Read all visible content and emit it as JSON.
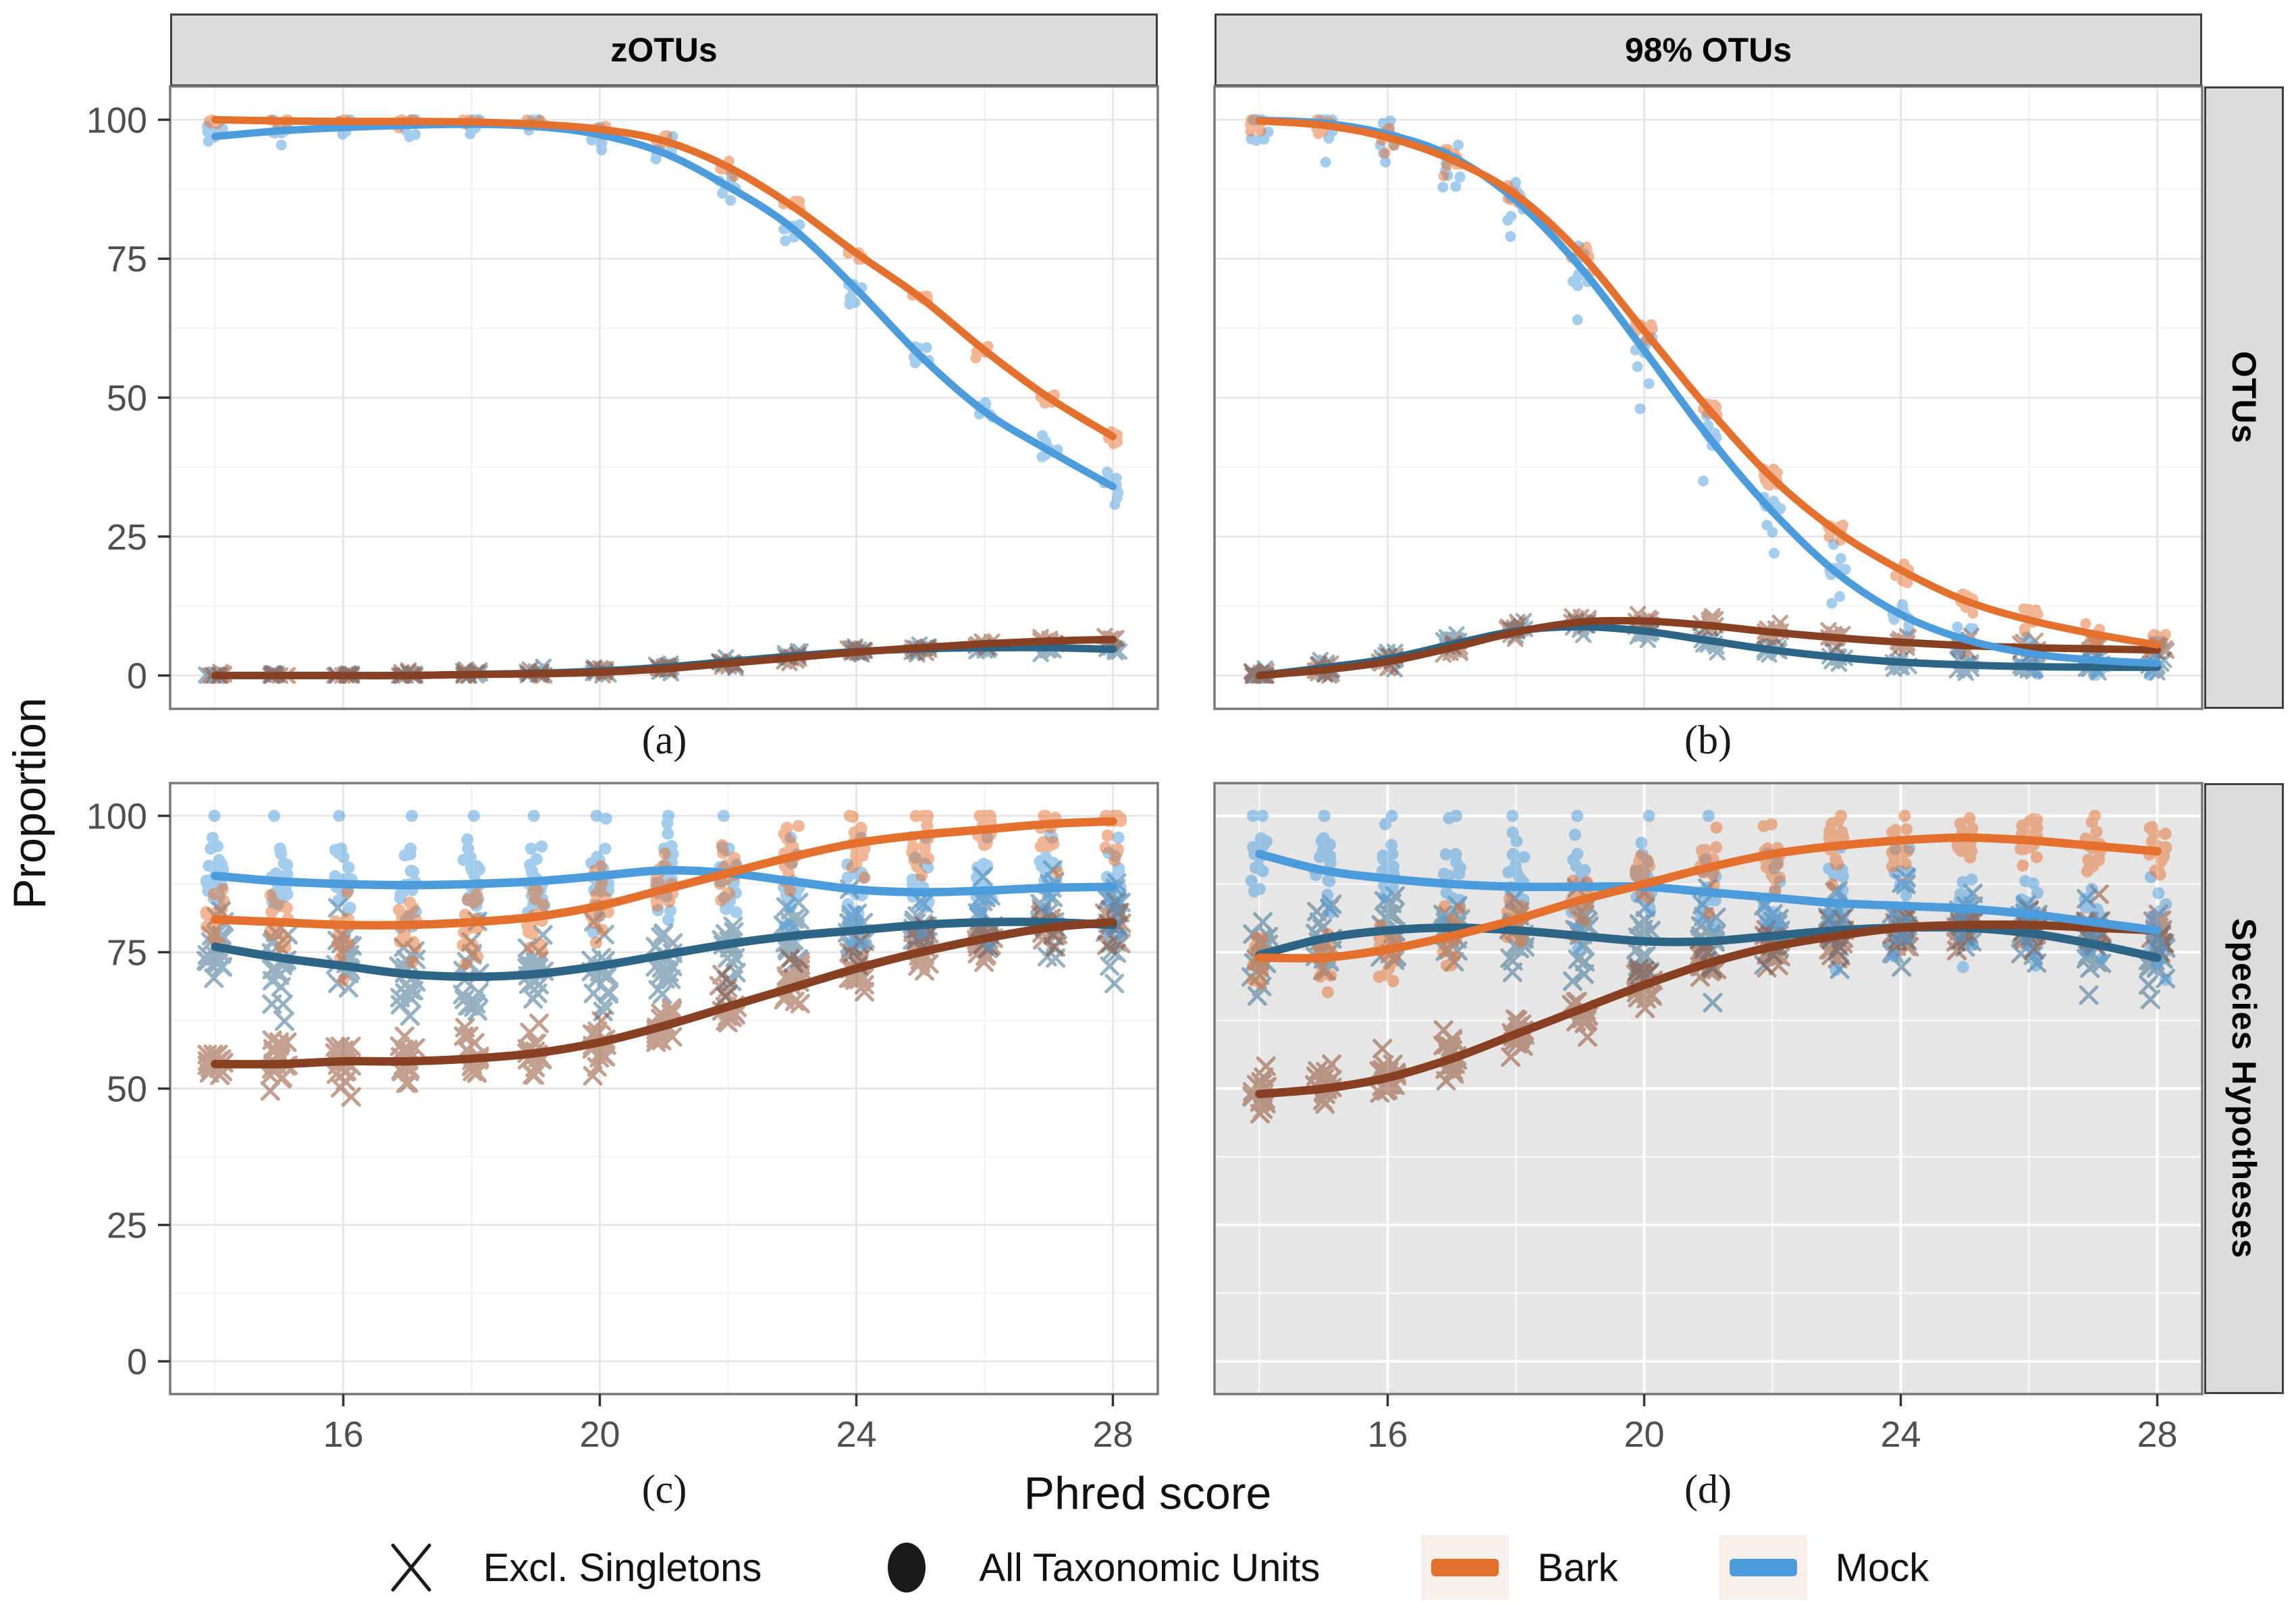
{
  "figure": {
    "y_axis_title": "Proportion",
    "x_axis_title": "Phred score",
    "col_labels": [
      "zOTUs",
      "98% OTUs"
    ],
    "row_labels": [
      "OTUs",
      "Species Hypotheses"
    ],
    "captions": [
      "(a)",
      "(b)",
      "(c)",
      "(d)"
    ],
    "colors": {
      "bark": "#E4702E",
      "mock": "#4C9CDC",
      "bark_dark": "#874021",
      "mock_dark": "#2E6486",
      "panel_white": "#FFFFFF",
      "panel_grey": "#E6E6E6",
      "strip_bg": "#DCDCDC",
      "grid_major_on_white": "#E4E4E4",
      "grid_minor_on_white": "#F2F2F2",
      "grid_on_grey": "#FFFFFF",
      "panel_border": "#777777",
      "axis_text": "#4F4F4F",
      "tick_mark": "#333333",
      "legend_symbol": "#1A1A1A"
    },
    "legend": [
      {
        "symbol": "cross",
        "label": "Excl. Singletons"
      },
      {
        "symbol": "dot",
        "label": "All Taxonomic Units"
      },
      {
        "symbol": "line",
        "color_key": "bark",
        "label": "Bark"
      },
      {
        "symbol": "line",
        "color_key": "mock",
        "label": "Mock"
      }
    ]
  },
  "chart_data": {
    "type": "scatter",
    "title": "",
    "xlabel": "Phred score",
    "ylabel": "Proportion",
    "x": [
      14,
      15,
      16,
      17,
      18,
      19,
      20,
      21,
      22,
      23,
      24,
      25,
      26,
      27,
      28
    ],
    "x_ticks": [
      16,
      20,
      24,
      28
    ],
    "y_ticks": [
      0,
      25,
      50,
      75,
      100
    ],
    "x_minor": [
      14,
      18,
      22,
      26
    ],
    "y_minor": [
      12.5,
      37.5,
      62.5,
      87.5
    ],
    "ylim": [
      0,
      100
    ],
    "grid": true,
    "legend_position": "bottom",
    "panels": [
      {
        "id": "a",
        "caption": "(a)",
        "col_label": "zOTUs",
        "row_label": "OTUs",
        "bg": "panel_white",
        "series": [
          {
            "name": "Mock - Excl. Singletons",
            "color": "mock_dark",
            "marker": "cross",
            "values": [
              0,
              0,
              0,
              0,
              0.2,
              0.4,
              0.8,
              1.5,
              2.5,
              3.5,
              4.3,
              4.8,
              5,
              5,
              4.7
            ],
            "scatter": {
              "n": 8,
              "sd": 0.4
            }
          },
          {
            "name": "Bark - Excl. Singletons",
            "color": "bark_dark",
            "marker": "cross",
            "values": [
              0,
              0,
              0,
              0,
              0.2,
              0.3,
              0.6,
              1.2,
              2.2,
              3.2,
              4.2,
              5,
              5.7,
              6.2,
              6.5
            ],
            "scatter": {
              "n": 8,
              "sd": 0.4
            }
          },
          {
            "name": "Mock - All Taxonomic Units",
            "color": "mock",
            "marker": "dot",
            "values": [
              97,
              98,
              98.6,
              99,
              99.2,
              98.8,
              97.3,
              94,
              88,
              80.5,
              69.5,
              57.5,
              47.5,
              40.5,
              34
            ],
            "scatter": {
              "n": 8,
              "sd": 1.3
            }
          },
          {
            "name": "Bark - All Taxonomic Units",
            "color": "bark",
            "marker": "dot",
            "values": [
              100,
              99.8,
              99.7,
              99.7,
              99.6,
              99.2,
              98.3,
              96.2,
              91.5,
              84.5,
              76,
              68,
              58.5,
              50,
              43
            ],
            "scatter": {
              "n": 8,
              "sd": 0.6
            }
          }
        ]
      },
      {
        "id": "b",
        "caption": "(b)",
        "col_label": "98% OTUs",
        "row_label": "OTUs",
        "bg": "panel_white",
        "series": [
          {
            "name": "Mock - Excl. Singletons",
            "color": "mock_dark",
            "marker": "cross",
            "values": [
              0,
              1.4,
              3,
              5.6,
              8,
              8.8,
              8,
              6.3,
              4.6,
              3.3,
              2.4,
              1.9,
              1.6,
              1.5,
              1.5
            ],
            "scatter": {
              "n": 10,
              "sd": 0.8
            }
          },
          {
            "name": "Bark - Excl. Singletons",
            "color": "bark_dark",
            "marker": "cross",
            "values": [
              0,
              1,
              2.5,
              5,
              7.8,
              9.6,
              9.8,
              9,
              7.8,
              6.8,
              6,
              5.4,
              5,
              4.8,
              4.6
            ],
            "scatter": {
              "n": 10,
              "sd": 0.8
            }
          },
          {
            "name": "Mock - All Taxonomic Units",
            "color": "mock",
            "marker": "dot",
            "values": [
              99.9,
              99.4,
              97.4,
              93.4,
              85.5,
              73.5,
              58.5,
              43,
              29.5,
              18.5,
              11,
              6.5,
              4,
              2.8,
              2.2
            ],
            "scatter": {
              "n": 10,
              "sd": 2.2,
              "extras_map": {
                "17": [
                  88
                ],
                "18": [
                  79
                ],
                "19": [
                  64
                ],
                "20": [
                  48
                ],
                "21": [
                  35
                ],
                "22": [
                  22
                ],
                "23": [
                  13
                ]
              }
            }
          },
          {
            "name": "Bark - All Taxonomic Units",
            "color": "bark",
            "marker": "dot",
            "values": [
              99.8,
              99,
              96.8,
              92.8,
              86.5,
              76,
              62,
              48,
              35.5,
              26,
              19,
              13.5,
              10,
              7.5,
              5.5
            ],
            "scatter": {
              "n": 10,
              "sd": 1,
              "extras_map": {
                "15": [
                  97.5
                ],
                "16": [
                  94
                ]
              }
            }
          }
        ]
      },
      {
        "id": "c",
        "caption": "(c)",
        "col_label": "zOTUs",
        "row_label": "Species Hypotheses",
        "bg": "panel_white",
        "series": [
          {
            "name": "Mock - Excl. Singletons",
            "color": "mock_dark",
            "marker": "cross",
            "values": [
              76,
              74,
              72.5,
              71,
              70.5,
              71,
              72.5,
              74.5,
              76.5,
              78,
              79,
              80,
              80.5,
              80.5,
              80
            ],
            "scatter": {
              "n": 18,
              "sd": 3.8
            }
          },
          {
            "name": "Bark - Excl. Singletons",
            "color": "bark_dark",
            "marker": "cross",
            "values": [
              54.5,
              54.5,
              55,
              55,
              55.5,
              56.5,
              58.5,
              61.5,
              65,
              68.5,
              72,
              75,
              77.5,
              79.5,
              80.5
            ],
            "scatter": {
              "n": 18,
              "sd": 2.2
            }
          },
          {
            "name": "Mock - All Taxonomic Units",
            "color": "mock",
            "marker": "dot",
            "values": [
              89,
              88,
              87.5,
              87.3,
              87.5,
              88,
              89,
              90,
              89.5,
              88,
              86.5,
              86,
              86.3,
              86.8,
              87
            ],
            "scatter": {
              "n": 18,
              "sd": 4,
              "extras_map": {
                "14": [
                  100,
                  94
                ],
                "15": [
                  100,
                  94
                ],
                "16": [
                  100,
                  94
                ],
                "17": [
                  100,
                  94
                ],
                "18": [
                  100,
                  94
                ],
                "19": [
                  100,
                  94
                ],
                "20": [
                  100,
                  94
                ],
                "21": [
                  100,
                  94
                ],
                "22": [
                  100,
                  94
                ],
                "23": [
                  96
                ],
                "24": [
                  96
                ],
                "25": [
                  96
                ],
                "26": [
                  96
                ],
                "27": [
                  96
                ],
                "28": [
                  96
                ]
              }
            }
          },
          {
            "name": "Bark - All Taxonomic Units",
            "color": "bark",
            "marker": "dot",
            "values": [
              81,
              80.5,
              80,
              80,
              80.5,
              81.5,
              83.5,
              86.5,
              89.5,
              92.5,
              95,
              96.5,
              97.5,
              98.5,
              99
            ],
            "scatter": {
              "n": 18,
              "sd": 3.2
            }
          }
        ]
      },
      {
        "id": "d",
        "caption": "(d)",
        "col_label": "98% OTUs",
        "row_label": "Species Hypotheses",
        "bg": "panel_grey",
        "series": [
          {
            "name": "Mock - Excl. Singletons",
            "color": "mock_dark",
            "marker": "cross",
            "values": [
              74.5,
              77.5,
              79,
              79.5,
              79,
              78,
              77,
              77,
              78,
              79,
              79.5,
              79.5,
              78.5,
              76.5,
              74
            ],
            "scatter": {
              "n": 18,
              "sd": 4
            }
          },
          {
            "name": "Bark - Excl. Singletons",
            "color": "bark_dark",
            "marker": "cross",
            "values": [
              49,
              50,
              52,
              55.5,
              60,
              64.5,
              69,
              73,
              76,
              78,
              79.5,
              80,
              80,
              79.5,
              79
            ],
            "scatter": {
              "n": 18,
              "sd": 2
            }
          },
          {
            "name": "Mock - All Taxonomic Units",
            "color": "mock",
            "marker": "dot",
            "values": [
              93,
              90,
              88.5,
              87.5,
              87,
              87,
              87,
              86,
              85,
              84,
              83.5,
              83,
              82,
              80.5,
              79
            ],
            "scatter": {
              "n": 18,
              "sd": 4.5,
              "extras_map": {
                "14": [
                  100,
                  94
                ],
                "15": [
                  100
                ],
                "16": [
                  100,
                  93
                ],
                "17": [
                  100,
                  93
                ],
                "18": [
                  100,
                  93
                ],
                "19": [
                  100,
                  93
                ],
                "20": [
                  100,
                  93
                ],
                "21": [
                  100,
                  92
                ]
              }
            }
          },
          {
            "name": "Bark - All Taxonomic Units",
            "color": "bark",
            "marker": "dot",
            "values": [
              74,
              74,
              75.5,
              78,
              81,
              84.5,
              87.5,
              90.5,
              93,
              94.5,
              95.5,
              96,
              95.5,
              94.5,
              93.5
            ],
            "scatter": {
              "n": 18,
              "sd": 3
            }
          }
        ]
      }
    ]
  }
}
